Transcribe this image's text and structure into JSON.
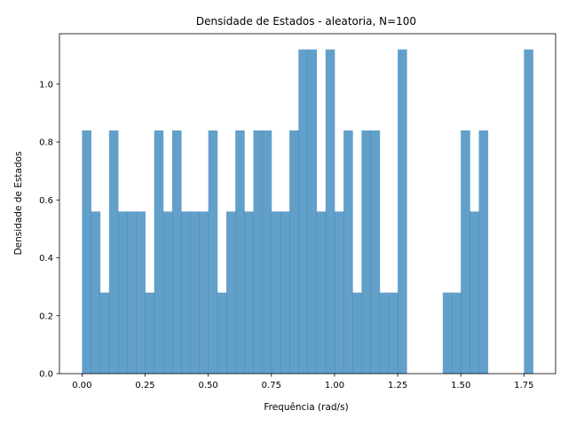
{
  "chart_data": {
    "type": "bar",
    "title": "Densidade de Estados - aleatoria, N=100",
    "xlabel": "Frequência (rad/s)",
    "ylabel": "Densidade de Estados",
    "xlim": [
      -0.0893,
      1.8753
    ],
    "ylim": [
      0.0,
      1.1742
    ],
    "grid": false,
    "bar_color": "#1f77b4",
    "bar_alpha": 0.7,
    "bin_edges": [
      0.0,
      0.0357,
      0.0714,
      0.1071,
      0.1429,
      0.1786,
      0.2143,
      0.25,
      0.2857,
      0.3214,
      0.3571,
      0.3929,
      0.4286,
      0.4643,
      0.5,
      0.5357,
      0.5714,
      0.6071,
      0.6429,
      0.6786,
      0.7143,
      0.75,
      0.7857,
      0.8214,
      0.8571,
      0.8929,
      0.9286,
      0.9643,
      1.0,
      1.0357,
      1.0714,
      1.1071,
      1.1429,
      1.1786,
      1.2143,
      1.25,
      1.2857,
      1.3214,
      1.3571,
      1.3929,
      1.4286,
      1.4643,
      1.5,
      1.5357,
      1.5714,
      1.6071,
      1.6429,
      1.6786,
      1.7143,
      1.75,
      1.7857
    ],
    "values": [
      0.84,
      0.56,
      0.28,
      0.84,
      0.56,
      0.56,
      0.56,
      0.28,
      0.84,
      0.56,
      0.84,
      0.56,
      0.56,
      0.56,
      0.84,
      0.28,
      0.56,
      0.84,
      0.56,
      0.84,
      0.84,
      0.56,
      0.56,
      0.84,
      1.12,
      1.12,
      0.56,
      1.12,
      0.56,
      0.84,
      0.28,
      0.84,
      0.84,
      0.28,
      0.28,
      1.12,
      0.0,
      0.0,
      0.0,
      0.0,
      0.28,
      0.28,
      0.84,
      0.56,
      0.84,
      0.0,
      0.0,
      0.0,
      0.0,
      1.12
    ],
    "xticks": [
      0.0,
      0.25,
      0.5,
      0.75,
      1.0,
      1.25,
      1.5,
      1.75
    ],
    "xtick_labels": [
      "0.00",
      "0.25",
      "0.50",
      "0.75",
      "1.00",
      "1.25",
      "1.50",
      "1.75"
    ],
    "yticks": [
      0.0,
      0.2,
      0.4,
      0.6,
      0.8,
      1.0
    ],
    "ytick_labels": [
      "0.0",
      "0.2",
      "0.4",
      "0.6",
      "0.8",
      "1.0"
    ]
  }
}
